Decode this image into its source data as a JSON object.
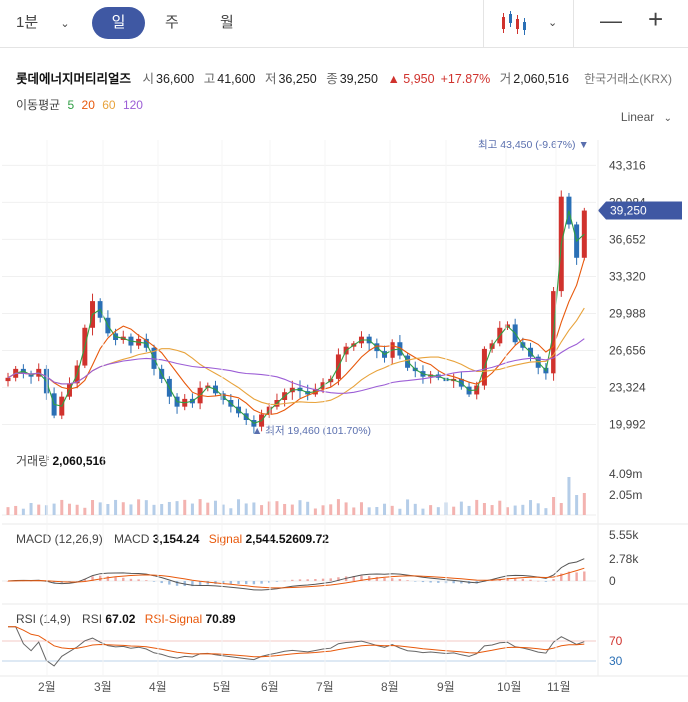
{
  "toolbar": {
    "interval": "1분",
    "tabs": [
      "일",
      "주",
      "월"
    ],
    "active_tab": "일",
    "chart_type_icon": "candlestick-icon",
    "minus": "—",
    "plus": "+"
  },
  "stock": {
    "name": "롯데에너지머티리얼즈",
    "open_label": "시",
    "open": "36,600",
    "high_label": "고",
    "high": "41,600",
    "low_label": "저",
    "low": "36,250",
    "close_label": "종",
    "close": "39,250",
    "change": "▲ 5,950",
    "change_pct": "+17.87%",
    "volume_label": "거",
    "volume": "2,060,516",
    "exchange": "한국거래소(KRX)"
  },
  "ma": {
    "label": "이동평균",
    "periods": [
      {
        "p": "5",
        "color": "#2f9e44"
      },
      {
        "p": "20",
        "color": "#e8590c"
      },
      {
        "p": "60",
        "color": "#e8a33c"
      },
      {
        "p": "120",
        "color": "#9c5ed6"
      }
    ]
  },
  "scale_mode": "Linear",
  "colors": {
    "up": "#d0322d",
    "down": "#2a6fb5",
    "accent": "#3f58a3"
  },
  "chart_data": [
    {
      "type": "candlestick",
      "x_ticks": [
        "2월",
        "3월",
        "4월",
        "5월",
        "6월",
        "7월",
        "8월",
        "9월",
        "10월",
        "11월"
      ],
      "y_ticks": [
        "43,316",
        "39,984",
        "36,652",
        "33,320",
        "29,988",
        "26,656",
        "23,324",
        "19,992"
      ],
      "ylim": [
        18600,
        45600
      ],
      "current_price": "39,250",
      "high_annotation": "최고 43,450 (-9.67%) ▼",
      "low_annotation": "▲ 최저 19,460 (101.70%)",
      "close_path": [
        24200,
        25000,
        24600,
        24300,
        25000,
        22800,
        20800,
        22500,
        23700,
        25300,
        28700,
        31100,
        29600,
        28200,
        27600,
        27900,
        27100,
        27700,
        26900,
        25000,
        24100,
        22500,
        21600,
        22300,
        21900,
        23300,
        23500,
        22800,
        22200,
        21600,
        21000,
        20400,
        19800,
        20900,
        21600,
        22200,
        22900,
        23300,
        23000,
        22700,
        23200,
        23800,
        24100,
        26300,
        27000,
        27300,
        27900,
        27300,
        26600,
        26000,
        27400,
        26200,
        25100,
        24800,
        24300,
        24500,
        24200,
        23900,
        24100,
        23400,
        22700,
        23500,
        26800,
        27300,
        28700,
        29000,
        27400,
        26900,
        26100,
        25100,
        24600,
        32000,
        40500,
        38000,
        35000,
        39250
      ],
      "volume_max_label": "4.09m",
      "volume_mid_label": "2.05m"
    },
    {
      "type": "line",
      "title": "거래량",
      "value": "2,060,516",
      "y_ticks": [
        "4.09m",
        "2.05m"
      ]
    },
    {
      "type": "line",
      "title": "MACD (12,26,9)",
      "macd_label": "MACD",
      "macd": "3,154.24",
      "signal_label": "Signal",
      "signal": "2,544.52609.72",
      "y_ticks": [
        "5.55k",
        "2.78k",
        "0"
      ]
    },
    {
      "type": "line",
      "title": "RSI (14,9)",
      "rsi_label": "RSI",
      "rsi": "67.02",
      "signal_label": "RSI-Signal",
      "signal": "70.89",
      "y_ticks": [
        "70",
        "30"
      ]
    }
  ]
}
